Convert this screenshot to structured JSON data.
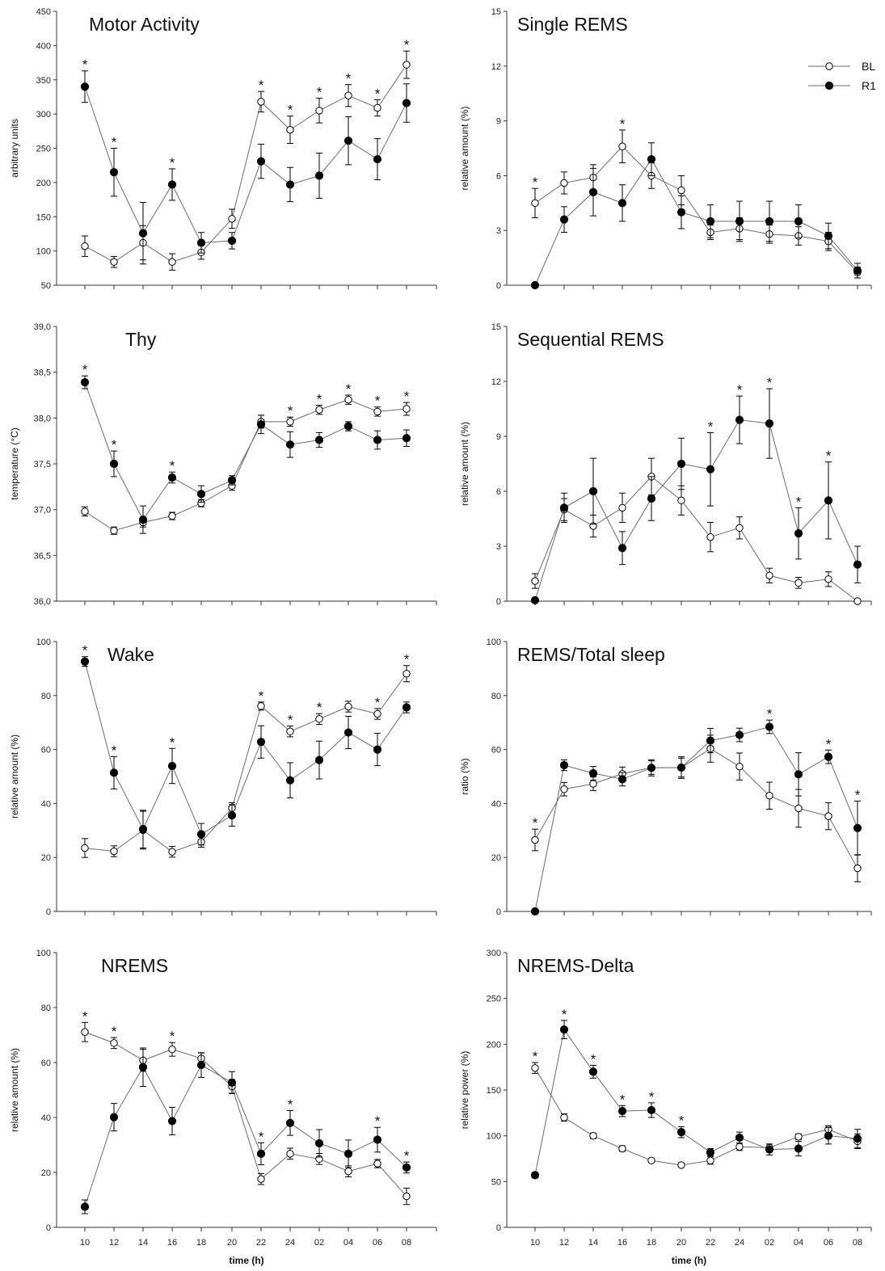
{
  "colors": {
    "line": "#6b6b6b",
    "marker": "#000000",
    "open_fill": "#ffffff"
  },
  "legend": {
    "entries": [
      "BL",
      "R1"
    ]
  },
  "xlabel": "time (h)",
  "chart_data": [
    {
      "type": "line",
      "title": "Motor Activity",
      "ylabel": "arbitrary units",
      "ylim": [
        50,
        450
      ],
      "yticks": [
        "50",
        "100",
        "150",
        "200",
        "250",
        "300",
        "350",
        "400",
        "450"
      ],
      "categories": [
        "10",
        "12",
        "14",
        "16",
        "18",
        "20",
        "22",
        "24",
        "02",
        "04",
        "06",
        "08"
      ],
      "show_xticklabels": false,
      "series": [
        {
          "name": "BL",
          "marker": "open",
          "values": [
            107,
            84,
            112,
            84,
            98,
            147,
            318,
            277,
            305,
            327,
            309,
            372
          ],
          "errors": [
            15,
            8,
            25,
            12,
            10,
            14,
            15,
            20,
            18,
            16,
            12,
            20
          ]
        },
        {
          "name": "R1",
          "marker": "filled",
          "values": [
            340,
            215,
            126,
            197,
            112,
            115,
            231,
            197,
            210,
            261,
            234,
            316
          ],
          "errors": [
            23,
            35,
            45,
            23,
            15,
            12,
            25,
            25,
            33,
            35,
            30,
            28
          ]
        }
      ],
      "significant": [
        "10",
        "12",
        "16",
        "22",
        "24",
        "02",
        "04",
        "06",
        "08"
      ]
    },
    {
      "type": "line",
      "title": "Single REMS",
      "ylabel": "relative amount (%)",
      "ylim": [
        0,
        15
      ],
      "yticks": [
        "0",
        "3",
        "6",
        "9",
        "12",
        "15"
      ],
      "categories": [
        "10",
        "12",
        "14",
        "16",
        "18",
        "20",
        "22",
        "24",
        "02",
        "04",
        "06",
        "08"
      ],
      "show_xticklabels": false,
      "series": [
        {
          "name": "BL",
          "marker": "open",
          "values": [
            4.5,
            5.6,
            5.9,
            7.6,
            6.0,
            5.2,
            2.9,
            3.1,
            2.8,
            2.7,
            2.4,
            0.7
          ],
          "errors": [
            0.8,
            0.6,
            0.7,
            0.9,
            0.7,
            0.8,
            0.4,
            0.6,
            0.5,
            0.5,
            0.5,
            0.3
          ]
        },
        {
          "name": "R1",
          "marker": "filled",
          "values": [
            0,
            3.6,
            5.1,
            4.5,
            6.9,
            4.0,
            3.5,
            3.5,
            3.5,
            3.5,
            2.7,
            0.8
          ],
          "errors": [
            0,
            0.7,
            1.3,
            1.0,
            0.9,
            0.9,
            0.9,
            1.1,
            1.1,
            0.9,
            0.7,
            0.4
          ]
        }
      ],
      "significant": [
        "10",
        "16"
      ]
    },
    {
      "type": "line",
      "title": "Thy",
      "ylabel": "temperature (°C)",
      "ylim": [
        36.0,
        39.0
      ],
      "yticks": [
        "36,0",
        "36,5",
        "37,0",
        "37,5",
        "38,0",
        "38,5",
        "39,0"
      ],
      "categories": [
        "10",
        "12",
        "14",
        "16",
        "18",
        "20",
        "22",
        "24",
        "02",
        "04",
        "06",
        "08"
      ],
      "show_xticklabels": false,
      "series": [
        {
          "name": "BL",
          "marker": "open",
          "values": [
            36.98,
            36.77,
            36.86,
            36.93,
            37.07,
            37.26,
            37.96,
            37.96,
            38.09,
            38.2,
            38.07,
            38.1
          ],
          "errors": [
            0.05,
            0.04,
            0.05,
            0.04,
            0.04,
            0.05,
            0.07,
            0.05,
            0.05,
            0.05,
            0.05,
            0.07
          ]
        },
        {
          "name": "R1",
          "marker": "filled",
          "values": [
            38.39,
            37.5,
            36.89,
            37.35,
            37.17,
            37.32,
            37.93,
            37.71,
            37.76,
            37.91,
            37.76,
            37.78
          ],
          "errors": [
            0.07,
            0.14,
            0.15,
            0.06,
            0.09,
            0.05,
            0.1,
            0.14,
            0.08,
            0.05,
            0.1,
            0.09
          ]
        }
      ],
      "significant": [
        "10",
        "12",
        "16",
        "24",
        "02",
        "04",
        "06",
        "08"
      ]
    },
    {
      "type": "line",
      "title": "Sequential REMS",
      "ylabel": "relative amount (%)",
      "ylim": [
        0,
        15
      ],
      "yticks": [
        "0",
        "3",
        "6",
        "9",
        "12",
        "15"
      ],
      "categories": [
        "10",
        "12",
        "14",
        "16",
        "18",
        "20",
        "22",
        "24",
        "02",
        "04",
        "06",
        "08"
      ],
      "show_xticklabels": false,
      "series": [
        {
          "name": "BL",
          "marker": "open",
          "values": [
            1.1,
            5.0,
            4.1,
            5.1,
            6.8,
            5.5,
            3.5,
            4.0,
            1.4,
            1.0,
            1.2,
            0.0
          ],
          "errors": [
            0.4,
            0.6,
            0.6,
            0.8,
            1.0,
            0.8,
            0.8,
            0.6,
            0.4,
            0.3,
            0.4,
            0.0
          ]
        },
        {
          "name": "R1",
          "marker": "filled",
          "values": [
            0.05,
            5.1,
            6.0,
            2.9,
            5.6,
            7.5,
            7.2,
            9.9,
            9.7,
            3.7,
            5.5,
            2.0
          ],
          "errors": [
            0,
            0.8,
            1.8,
            0.9,
            1.2,
            1.4,
            2.0,
            1.3,
            1.9,
            1.4,
            2.1,
            1.0
          ]
        }
      ],
      "significant": [
        "22",
        "24",
        "02",
        "04",
        "06"
      ]
    },
    {
      "type": "line",
      "title": "Wake",
      "ylabel": "relative amount (%)",
      "ylim": [
        0,
        100
      ],
      "yticks": [
        "0",
        "20",
        "40",
        "60",
        "80",
        "100"
      ],
      "categories": [
        "10",
        "12",
        "14",
        "16",
        "18",
        "20",
        "22",
        "24",
        "02",
        "04",
        "06",
        "08"
      ],
      "show_xticklabels": false,
      "series": [
        {
          "name": "BL",
          "marker": "open",
          "values": [
            23.5,
            22.3,
            30.1,
            22.1,
            25.8,
            38.3,
            76.1,
            66.7,
            71.3,
            75.9,
            73.2,
            88.1
          ],
          "errors": [
            3.5,
            2.0,
            7.0,
            2.0,
            2.0,
            2.0,
            1.5,
            2.0,
            2.0,
            2.0,
            2.0,
            3.0
          ]
        },
        {
          "name": "R1",
          "marker": "filled",
          "values": [
            92.6,
            51.4,
            30.5,
            53.9,
            28.6,
            35.6,
            62.8,
            48.6,
            56.1,
            66.3,
            60.0,
            75.6
          ],
          "errors": [
            1.8,
            6.0,
            7.0,
            6.5,
            4.0,
            4.0,
            6.0,
            6.5,
            7.0,
            6.0,
            6.0,
            2.0
          ]
        }
      ],
      "significant": [
        "10",
        "12",
        "16",
        "22",
        "24",
        "02",
        "06",
        "08"
      ]
    },
    {
      "type": "line",
      "title": "REMS/Total sleep",
      "ylabel": "ratio (%)",
      "ylim": [
        0,
        100
      ],
      "yticks": [
        "0",
        "20",
        "40",
        "60",
        "80",
        "100"
      ],
      "categories": [
        "10",
        "12",
        "14",
        "16",
        "18",
        "20",
        "22",
        "24",
        "02",
        "04",
        "06",
        "08"
      ],
      "show_xticklabels": false,
      "series": [
        {
          "name": "BL",
          "marker": "open",
          "values": [
            26.5,
            45.3,
            47.3,
            51.0,
            53.3,
            53.3,
            60.3,
            53.7,
            42.9,
            38.2,
            35.3,
            16.0
          ],
          "errors": [
            4.0,
            2.5,
            2.5,
            2.5,
            2.5,
            4.0,
            5.0,
            5.0,
            5.0,
            7.0,
            5.0,
            5.0
          ]
        },
        {
          "name": "R1",
          "marker": "filled",
          "values": [
            0,
            54.2,
            51.2,
            49.0,
            53.2,
            53.3,
            63.3,
            65.4,
            68.4,
            50.8,
            57.3,
            30.9
          ],
          "errors": [
            0,
            2.0,
            2.5,
            2.5,
            3.0,
            3.5,
            4.5,
            2.5,
            2.5,
            8.0,
            2.5,
            10.0
          ]
        }
      ],
      "significant": [
        "10",
        "02",
        "06",
        "08"
      ]
    },
    {
      "type": "line",
      "title": "NREMS",
      "ylabel": "relative amount (%)",
      "ylim": [
        0,
        100
      ],
      "yticks": [
        "0",
        "20",
        "40",
        "60",
        "80",
        "100"
      ],
      "categories": [
        "10",
        "12",
        "14",
        "16",
        "18",
        "20",
        "22",
        "24",
        "02",
        "04",
        "06",
        "08"
      ],
      "show_xticklabels": true,
      "series": [
        {
          "name": "BL",
          "marker": "open",
          "values": [
            71.1,
            67.1,
            60.8,
            64.8,
            61.5,
            51.3,
            17.6,
            26.8,
            24.9,
            20.4,
            23.2,
            11.3
          ],
          "errors": [
            3.5,
            2.0,
            4.0,
            2.5,
            2.0,
            2.5,
            2.0,
            2.0,
            2.0,
            2.0,
            1.5,
            3.0
          ]
        },
        {
          "name": "R1",
          "marker": "filled",
          "values": [
            7.5,
            40.1,
            58.3,
            38.7,
            59.1,
            52.7,
            26.8,
            38.0,
            30.6,
            26.8,
            31.9,
            21.8
          ],
          "errors": [
            2.5,
            5.0,
            7.0,
            5.0,
            4.5,
            4.0,
            4.0,
            4.5,
            5.0,
            5.0,
            4.5,
            2.0
          ]
        }
      ],
      "significant": [
        "10",
        "12",
        "16",
        "22",
        "24",
        "06",
        "08"
      ]
    },
    {
      "type": "line",
      "title": "NREMS-Delta",
      "ylabel": "relative power (%)",
      "ylim": [
        0,
        300
      ],
      "yticks": [
        "0",
        "50",
        "100",
        "150",
        "200",
        "250",
        "300"
      ],
      "categories": [
        "10",
        "12",
        "14",
        "16",
        "18",
        "20",
        "22",
        "24",
        "02",
        "04",
        "06",
        "08"
      ],
      "show_xticklabels": true,
      "series": [
        {
          "name": "BL",
          "marker": "open",
          "values": [
            174,
            120,
            100,
            86,
            73,
            68,
            73,
            88,
            87,
            99,
            107,
            94
          ],
          "errors": [
            6,
            4,
            3,
            3,
            2,
            2,
            4,
            4,
            4,
            3,
            4,
            8
          ]
        },
        {
          "name": "R1",
          "marker": "filled",
          "values": [
            57,
            216,
            170,
            127,
            128,
            104,
            82,
            98,
            85,
            86,
            100,
            97
          ],
          "errors": [
            3,
            10,
            7,
            6,
            8,
            6,
            4,
            6,
            6,
            8,
            9,
            10
          ]
        }
      ],
      "significant": [
        "10",
        "12",
        "14",
        "16",
        "18",
        "20"
      ]
    }
  ]
}
